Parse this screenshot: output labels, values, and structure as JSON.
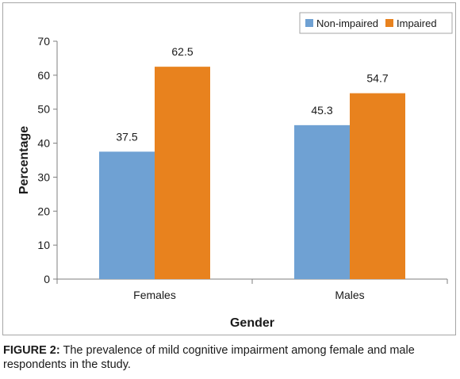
{
  "chart_data": {
    "type": "bar",
    "categories": [
      "Females",
      "Males"
    ],
    "series": [
      {
        "name": "Non-impaired",
        "values": [
          37.5,
          45.3
        ],
        "color": "#6fa1d3"
      },
      {
        "name": "Impaired",
        "values": [
          62.5,
          54.7
        ],
        "color": "#e8821e"
      }
    ],
    "xlabel": "Gender",
    "ylabel": "Percentage",
    "ylim": [
      0,
      70
    ],
    "yticks": [
      0,
      10,
      20,
      30,
      40,
      50,
      60,
      70
    ],
    "grid": false,
    "legend_position": "top-right",
    "data_labels": true
  },
  "caption": {
    "label": "FIGURE 2:",
    "text": "The prevalence of mild cognitive impairment among female and male respondents in the study."
  }
}
